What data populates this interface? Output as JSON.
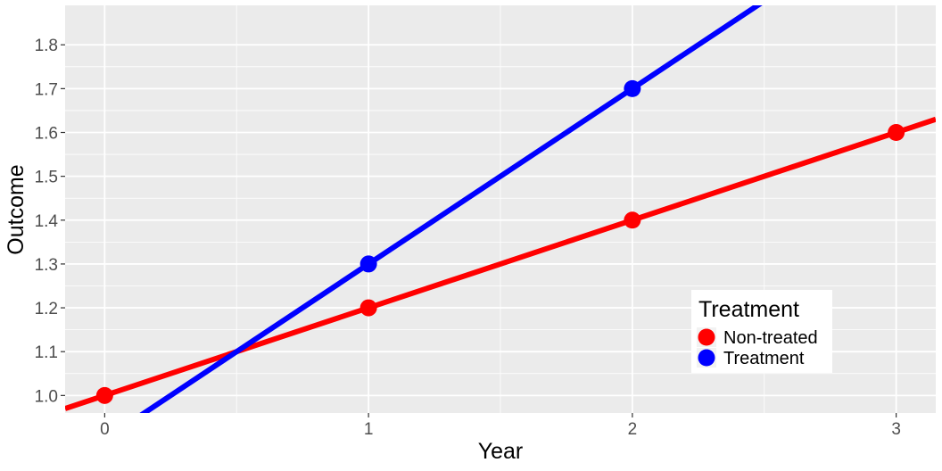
{
  "chart_data": {
    "type": "line",
    "xlabel": "Year",
    "ylabel": "Outcome",
    "xlim": [
      -0.15,
      3.15
    ],
    "ylim": [
      0.96,
      1.89
    ],
    "x_ticks": [
      0,
      1,
      2,
      3
    ],
    "x_tick_labels": [
      "0",
      "1",
      "2",
      "3"
    ],
    "y_ticks": [
      1.0,
      1.1,
      1.2,
      1.3,
      1.4,
      1.5,
      1.6,
      1.7,
      1.8
    ],
    "y_tick_labels": [
      "1.0",
      "1.1",
      "1.2",
      "1.3",
      "1.4",
      "1.5",
      "1.6",
      "1.7",
      "1.8"
    ],
    "grid": true,
    "panel_background": "#ebebeb",
    "legend": {
      "title": "Treatment",
      "position": "bottom-right-inside"
    },
    "series": [
      {
        "name": "Non-treated",
        "color": "#ff0000",
        "points": [
          {
            "x": 0,
            "y": 1.0
          },
          {
            "x": 1,
            "y": 1.2
          },
          {
            "x": 2,
            "y": 1.4
          },
          {
            "x": 3,
            "y": 1.6
          }
        ],
        "line": {
          "intercept": 1.0,
          "slope": 0.2
        }
      },
      {
        "name": "Treatment",
        "color": "#0000ff",
        "points": [
          {
            "x": 1,
            "y": 1.3
          },
          {
            "x": 2,
            "y": 1.7
          }
        ],
        "line": {
          "intercept": 0.9,
          "slope": 0.4
        }
      }
    ]
  }
}
